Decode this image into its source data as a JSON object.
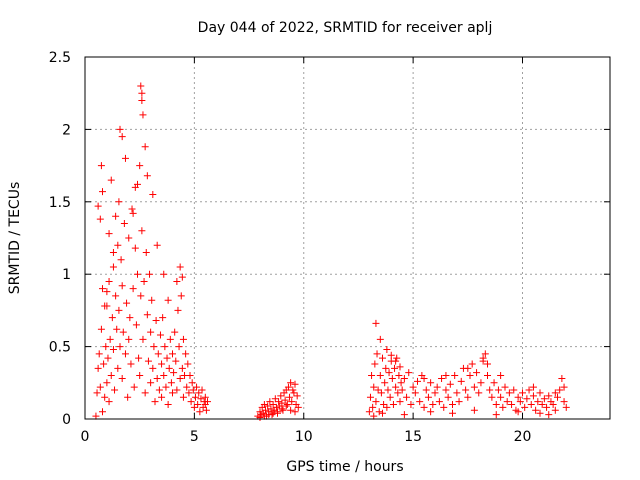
{
  "chart_data": {
    "type": "scatter",
    "title": "Day 044 of 2022, SRMTID for receiver aplj",
    "xlabel": "GPS time / hours",
    "ylabel": "SRMTID / TECUs",
    "xlim": [
      0,
      24
    ],
    "ylim": [
      0,
      2.5
    ],
    "xticks": [
      0,
      5,
      10,
      15,
      20
    ],
    "yticks": [
      0,
      0.5,
      1,
      1.5,
      2,
      2.5
    ],
    "xtick_labels": [
      "0",
      "5",
      "10",
      "15",
      "20"
    ],
    "ytick_labels": [
      "0",
      "0.5",
      "1",
      "1.5",
      "2",
      "2.5"
    ],
    "grid": true,
    "marker": "+",
    "color": "#ff0000",
    "series": [
      {
        "name": "SRMTID",
        "x": [
          0.5,
          0.55,
          0.6,
          0.65,
          0.7,
          0.75,
          0.8,
          0.8,
          0.85,
          0.9,
          0.95,
          1.0,
          1.0,
          1.05,
          1.1,
          1.1,
          1.15,
          1.2,
          1.25,
          1.3,
          1.3,
          1.35,
          1.4,
          1.45,
          1.5,
          1.5,
          1.55,
          1.6,
          1.65,
          1.7,
          1.7,
          1.75,
          1.8,
          1.85,
          1.9,
          1.95,
          2.0,
          2.0,
          2.05,
          2.1,
          2.15,
          2.2,
          2.25,
          2.3,
          2.35,
          2.4,
          2.45,
          2.5,
          2.5,
          2.55,
          2.6,
          2.65,
          2.7,
          2.75,
          2.8,
          2.85,
          2.9,
          2.95,
          3.0,
          3.0,
          3.05,
          3.1,
          3.15,
          3.2,
          3.25,
          3.3,
          3.35,
          3.4,
          3.45,
          3.5,
          3.5,
          3.55,
          3.6,
          3.65,
          3.7,
          3.75,
          3.8,
          3.85,
          3.9,
          3.95,
          4.0,
          4.0,
          4.05,
          4.1,
          4.15,
          4.2,
          4.25,
          4.3,
          4.35,
          4.4,
          4.45,
          4.5,
          4.5,
          4.55,
          4.6,
          4.65,
          4.7,
          4.75,
          4.8,
          4.85,
          4.9,
          4.95,
          5.0,
          5.05,
          5.1,
          5.15,
          5.2,
          5.25,
          5.3,
          5.35,
          5.4,
          5.45,
          5.5,
          5.5,
          5.55,
          5.6,
          1.6,
          1.7,
          2.55,
          2.6,
          2.6,
          2.65,
          1.2,
          0.75,
          0.8,
          1.85,
          2.75,
          2.85,
          4.35,
          4.45,
          0.6,
          0.7,
          1.4,
          1.55,
          2.4,
          3.1,
          3.3,
          3.6,
          0.9,
          1.0,
          1.1,
          1.3,
          2.2,
          2.3,
          3.8,
          4.2
        ],
        "y": [
          0.02,
          0.18,
          0.35,
          0.45,
          0.22,
          0.62,
          0.05,
          0.9,
          0.38,
          0.15,
          0.5,
          0.25,
          0.78,
          0.42,
          0.12,
          0.95,
          0.55,
          0.3,
          0.7,
          0.48,
          1.05,
          0.2,
          0.85,
          0.62,
          0.35,
          1.2,
          0.75,
          0.5,
          1.1,
          0.28,
          0.92,
          0.6,
          1.35,
          0.45,
          0.8,
          0.15,
          0.55,
          1.25,
          0.7,
          0.38,
          1.45,
          0.9,
          0.22,
          1.6,
          0.65,
          1.0,
          0.42,
          1.75,
          0.3,
          0.85,
          1.3,
          0.55,
          0.95,
          0.18,
          1.15,
          0.72,
          0.4,
          1.0,
          0.25,
          0.6,
          0.82,
          0.35,
          0.5,
          0.12,
          0.68,
          0.28,
          0.45,
          0.2,
          0.58,
          0.38,
          0.15,
          0.7,
          0.3,
          0.5,
          0.22,
          0.42,
          0.1,
          0.35,
          0.55,
          0.25,
          0.18,
          0.45,
          0.32,
          0.6,
          0.4,
          0.2,
          0.75,
          0.5,
          0.28,
          0.85,
          0.35,
          0.15,
          0.55,
          0.3,
          0.45,
          0.22,
          0.38,
          0.18,
          0.3,
          0.12,
          0.25,
          0.2,
          0.08,
          0.15,
          0.22,
          0.1,
          0.18,
          0.05,
          0.14,
          0.2,
          0.08,
          0.12,
          0.1,
          0.15,
          0.06,
          0.12,
          2.0,
          1.95,
          2.3,
          2.25,
          2.2,
          2.1,
          1.65,
          1.75,
          1.57,
          1.8,
          1.88,
          1.68,
          1.05,
          0.98,
          1.47,
          1.38,
          1.4,
          1.5,
          1.62,
          1.55,
          1.2,
          1.0,
          0.78,
          0.88,
          1.28,
          1.15,
          1.42,
          1.18,
          0.82,
          0.95
        ]
      },
      {
        "name": "SRMTID",
        "x": [
          7.9,
          8.0,
          8.05,
          8.1,
          8.15,
          8.2,
          8.25,
          8.3,
          8.35,
          8.4,
          8.45,
          8.5,
          8.55,
          8.6,
          8.65,
          8.7,
          8.75,
          8.8,
          8.85,
          8.9,
          8.95,
          9.0,
          9.05,
          9.1,
          9.15,
          9.2,
          9.25,
          9.3,
          9.35,
          9.4,
          9.45,
          9.5,
          9.55,
          9.6,
          9.65,
          9.7,
          9.75,
          8.0,
          8.2,
          8.4,
          8.6,
          8.8,
          9.0,
          9.2,
          9.4,
          9.6
        ],
        "y": [
          0.02,
          0.05,
          0.03,
          0.08,
          0.04,
          0.1,
          0.06,
          0.02,
          0.09,
          0.05,
          0.12,
          0.07,
          0.03,
          0.1,
          0.06,
          0.14,
          0.08,
          0.04,
          0.12,
          0.09,
          0.16,
          0.11,
          0.06,
          0.18,
          0.13,
          0.2,
          0.1,
          0.22,
          0.15,
          0.25,
          0.12,
          0.2,
          0.18,
          0.24,
          0.1,
          0.16,
          0.08,
          0.01,
          0.02,
          0.03,
          0.04,
          0.05,
          0.07,
          0.09,
          0.06,
          0.05
        ]
      },
      {
        "name": "SRMTID",
        "x": [
          13.0,
          13.05,
          13.1,
          13.15,
          13.2,
          13.25,
          13.3,
          13.35,
          13.4,
          13.45,
          13.5,
          13.55,
          13.6,
          13.65,
          13.7,
          13.75,
          13.8,
          13.85,
          13.9,
          13.95,
          14.0,
          14.05,
          14.1,
          14.15,
          14.2,
          14.25,
          14.3,
          14.35,
          14.4,
          14.45,
          14.5,
          14.6,
          14.7,
          14.8,
          14.9,
          15.0,
          15.1,
          15.2,
          15.3,
          15.4,
          15.5,
          15.6,
          15.7,
          15.8,
          15.9,
          16.0,
          16.1,
          16.2,
          16.3,
          16.4,
          16.5,
          16.6,
          16.7,
          16.8,
          16.9,
          17.0,
          17.1,
          17.2,
          17.3,
          17.4,
          17.5,
          17.6,
          17.7,
          17.8,
          17.9,
          18.0,
          18.1,
          18.2,
          18.3,
          18.4,
          18.5,
          18.6,
          18.7,
          18.8,
          18.9,
          19.0,
          19.1,
          19.2,
          19.3,
          19.4,
          19.5,
          19.6,
          19.7,
          19.8,
          19.9,
          20.0,
          20.1,
          20.2,
          20.3,
          20.4,
          20.5,
          20.6,
          20.7,
          20.8,
          20.9,
          21.0,
          21.1,
          21.2,
          21.3,
          21.4,
          21.5,
          21.6,
          21.7,
          21.8,
          21.9,
          22.0,
          13.3,
          13.5,
          13.8,
          14.0,
          14.2,
          14.4,
          15.5,
          16.5,
          17.5,
          18.2,
          18.4,
          19.0,
          20.5,
          21.5,
          21.9,
          13.2,
          13.6,
          14.6,
          15.8,
          16.8,
          17.8,
          18.8,
          19.8,
          20.8,
          21.2
        ],
        "y": [
          0.05,
          0.15,
          0.3,
          0.08,
          0.22,
          0.38,
          0.12,
          0.45,
          0.2,
          0.05,
          0.3,
          0.18,
          0.42,
          0.1,
          0.25,
          0.35,
          0.08,
          0.2,
          0.32,
          0.15,
          0.4,
          0.28,
          0.1,
          0.35,
          0.22,
          0.42,
          0.18,
          0.3,
          0.12,
          0.25,
          0.2,
          0.28,
          0.15,
          0.32,
          0.1,
          0.22,
          0.18,
          0.26,
          0.12,
          0.3,
          0.08,
          0.2,
          0.15,
          0.25,
          0.1,
          0.18,
          0.22,
          0.12,
          0.28,
          0.08,
          0.2,
          0.15,
          0.24,
          0.1,
          0.3,
          0.18,
          0.12,
          0.26,
          0.35,
          0.2,
          0.15,
          0.3,
          0.38,
          0.22,
          0.32,
          0.18,
          0.25,
          0.4,
          0.45,
          0.3,
          0.2,
          0.15,
          0.25,
          0.1,
          0.2,
          0.15,
          0.08,
          0.22,
          0.12,
          0.18,
          0.1,
          0.2,
          0.06,
          0.15,
          0.12,
          0.18,
          0.08,
          0.14,
          0.2,
          0.1,
          0.16,
          0.06,
          0.12,
          0.18,
          0.1,
          0.14,
          0.08,
          0.16,
          0.12,
          0.1,
          0.06,
          0.15,
          0.2,
          0.28,
          0.22,
          0.08,
          0.66,
          0.55,
          0.48,
          0.44,
          0.4,
          0.36,
          0.28,
          0.3,
          0.35,
          0.42,
          0.38,
          0.3,
          0.22,
          0.18,
          0.12,
          0.02,
          0.04,
          0.03,
          0.05,
          0.04,
          0.06,
          0.03,
          0.05,
          0.04,
          0.03
        ]
      }
    ]
  }
}
